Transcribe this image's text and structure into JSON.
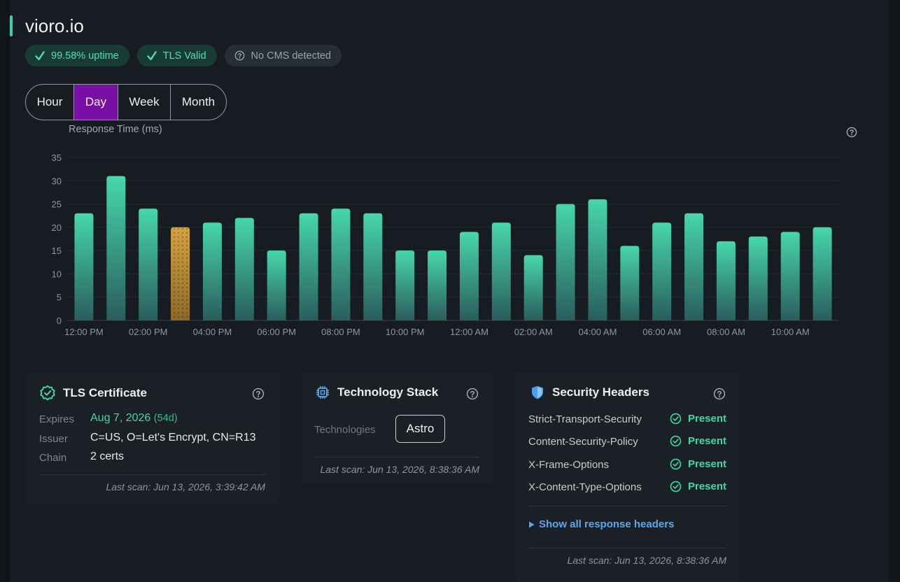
{
  "site": {
    "title": "vioro.io"
  },
  "badges": [
    {
      "label": "99.58% uptime",
      "icon": "check-icon"
    },
    {
      "label": "TLS Valid",
      "icon": "check-icon"
    },
    {
      "label": "No CMS detected",
      "icon": "question-circle-icon"
    }
  ],
  "range_tabs": [
    {
      "label": "Hour",
      "active": false
    },
    {
      "label": "Day",
      "active": true
    },
    {
      "label": "Week",
      "active": false
    },
    {
      "label": "Month",
      "active": false
    }
  ],
  "chart_data": {
    "type": "bar",
    "ylabel": "Response Time (ms)",
    "xlabel": "",
    "ylim": [
      0,
      35
    ],
    "yticks": [
      0,
      5,
      10,
      15,
      20,
      25,
      30,
      35
    ],
    "grid": true,
    "x_tick_labels": [
      "12:00 PM",
      "02:00 PM",
      "04:00 PM",
      "06:00 PM",
      "08:00 PM",
      "10:00 PM",
      "12:00 AM",
      "02:00 AM",
      "04:00 AM",
      "06:00 AM",
      "08:00 AM",
      "10:00 AM"
    ],
    "values": [
      23,
      31,
      24,
      20,
      21,
      22,
      15,
      23,
      24,
      23,
      15,
      15,
      19,
      21,
      14,
      25,
      26,
      16,
      21,
      23,
      17,
      18,
      19,
      20
    ],
    "highlight_index": 3,
    "colors": {
      "bar": "#3fd0a4",
      "highlight": "#d9a53f"
    }
  },
  "tls_card": {
    "title": "TLS Certificate",
    "expires_label": "Expires",
    "expires_value": "Aug 7, 2026",
    "expires_days": "(54d)",
    "issuer_label": "Issuer",
    "issuer_value": "C=US, O=Let's Encrypt, CN=R13",
    "chain_label": "Chain",
    "chain_value": "2 certs",
    "last_scan": "Last scan: Jun 13, 2026, 3:39:42 AM"
  },
  "tech_card": {
    "title": "Technology Stack",
    "technologies_label": "Technologies",
    "technologies": [
      "Astro"
    ],
    "last_scan": "Last scan: Jun 13, 2026, 8:38:36 AM"
  },
  "security_card": {
    "title": "Security Headers",
    "headers": [
      {
        "name": "Strict-Transport-Security",
        "status": "Present"
      },
      {
        "name": "Content-Security-Policy",
        "status": "Present"
      },
      {
        "name": "X-Frame-Options",
        "status": "Present"
      },
      {
        "name": "X-Content-Type-Options",
        "status": "Present"
      }
    ],
    "show_all_label": "Show all response headers",
    "last_scan": "Last scan: Jun 13, 2026, 8:38:36 AM"
  }
}
